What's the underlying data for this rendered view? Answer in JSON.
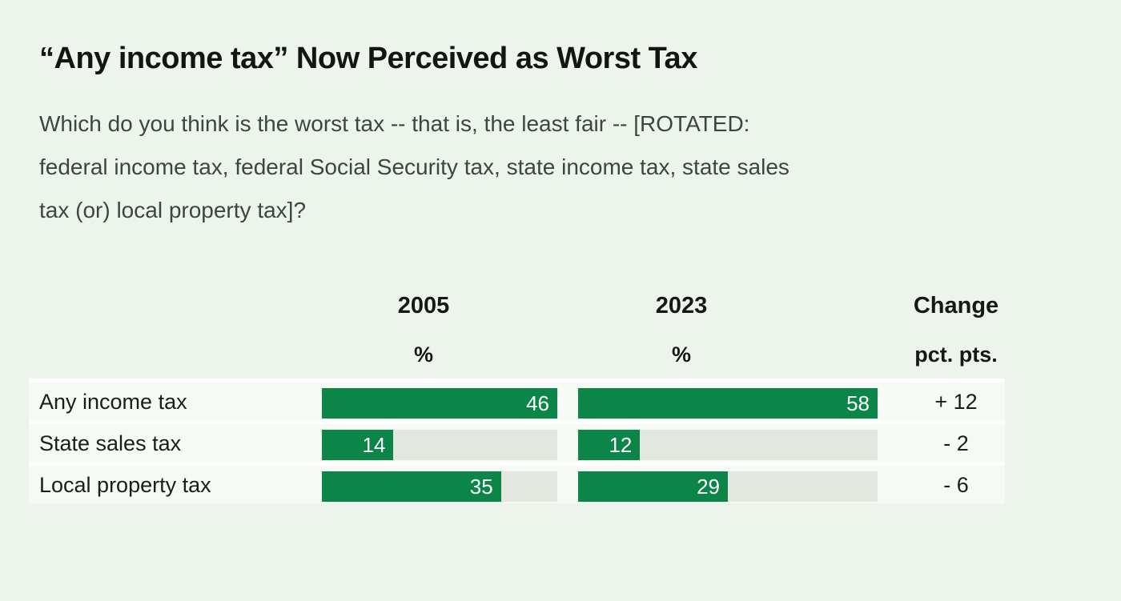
{
  "title": "“Any income tax” Now Perceived as Worst Tax",
  "subtitle_lines": [
    "Which do you think is the worst tax -- that is, the least fair -- [ROTATED:",
    "federal income tax, federal Social Security tax, state income tax, state sales",
    "tax (or) local property tax]?"
  ],
  "header": {
    "col_2005": "2005",
    "col_2023": "2023",
    "col_change": "Change",
    "unit_pct": "%",
    "unit_change": "pct. pts."
  },
  "chart_data": {
    "type": "bar",
    "title": "“Any income tax” Now Perceived as Worst Tax",
    "categories": [
      "Any income tax",
      "State sales tax",
      "Local property tax"
    ],
    "series": [
      {
        "name": "2005",
        "unit": "%",
        "values": [
          46,
          14,
          35
        ]
      },
      {
        "name": "2023",
        "unit": "%",
        "values": [
          58,
          12,
          29
        ]
      }
    ],
    "change": {
      "name": "Change",
      "unit": "pct. pts.",
      "values": [
        "+ 12",
        "- 2",
        "- 6"
      ]
    },
    "layout": "horizontal grouped bars in table columns; each column scaled so its maximum value fills the track; value labels right-aligned inside bars; no axis, no gridlines, no legend",
    "bar_color": "#0b8648",
    "track_color": "#e3e7e0"
  },
  "colors": {
    "page_background": "#edf4ec",
    "row_band_background": "#f6faf4",
    "row_separator": "#ffffff",
    "bar_green": "#0b8648",
    "track_gray": "#e3e7e0",
    "title_text": "#131513",
    "question_text": "#3d453f",
    "label_text": "#1a1d1b"
  }
}
